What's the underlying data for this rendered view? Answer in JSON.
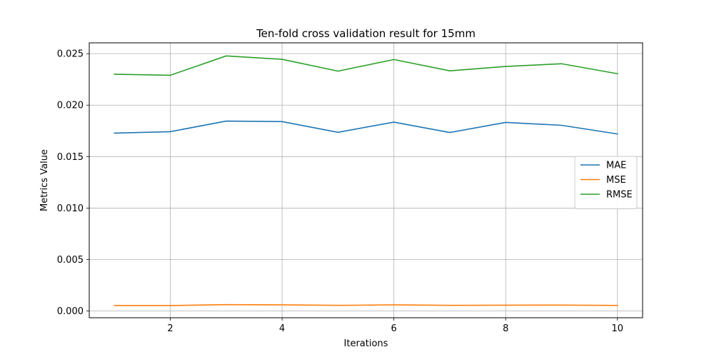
{
  "chart_data": {
    "type": "line",
    "title": "Ten-fold cross validation result for 15mm",
    "xlabel": "Iterations",
    "ylabel": "Metrics Value",
    "x": [
      1,
      2,
      3,
      4,
      5,
      6,
      7,
      8,
      9,
      10
    ],
    "xlim": [
      0.55,
      10.45
    ],
    "ylim": [
      -0.00065,
      0.02605
    ],
    "xticks": [
      2,
      4,
      6,
      8,
      10
    ],
    "xtick_labels": [
      "2",
      "4",
      "6",
      "8",
      "10"
    ],
    "yticks": [
      0.0,
      0.005,
      0.01,
      0.015,
      0.02,
      0.025
    ],
    "ytick_labels": [
      "0.000",
      "0.005",
      "0.010",
      "0.015",
      "0.020",
      "0.025"
    ],
    "grid": true,
    "legend_position": "center-right",
    "series": [
      {
        "name": "MAE",
        "color": "#1f77b4",
        "values": [
          0.01728,
          0.01742,
          0.01845,
          0.0184,
          0.01736,
          0.01835,
          0.01734,
          0.01832,
          0.01804,
          0.0172
        ]
      },
      {
        "name": "MSE",
        "color": "#ff7f0e",
        "values": [
          0.00053,
          0.00053,
          0.00062,
          0.0006,
          0.00055,
          0.0006,
          0.00055,
          0.00057,
          0.00058,
          0.00054
        ]
      },
      {
        "name": "RMSE",
        "color": "#2ca02c",
        "values": [
          0.023,
          0.0229,
          0.02478,
          0.02445,
          0.0233,
          0.02443,
          0.02333,
          0.02376,
          0.02402,
          0.02305
        ]
      }
    ]
  }
}
